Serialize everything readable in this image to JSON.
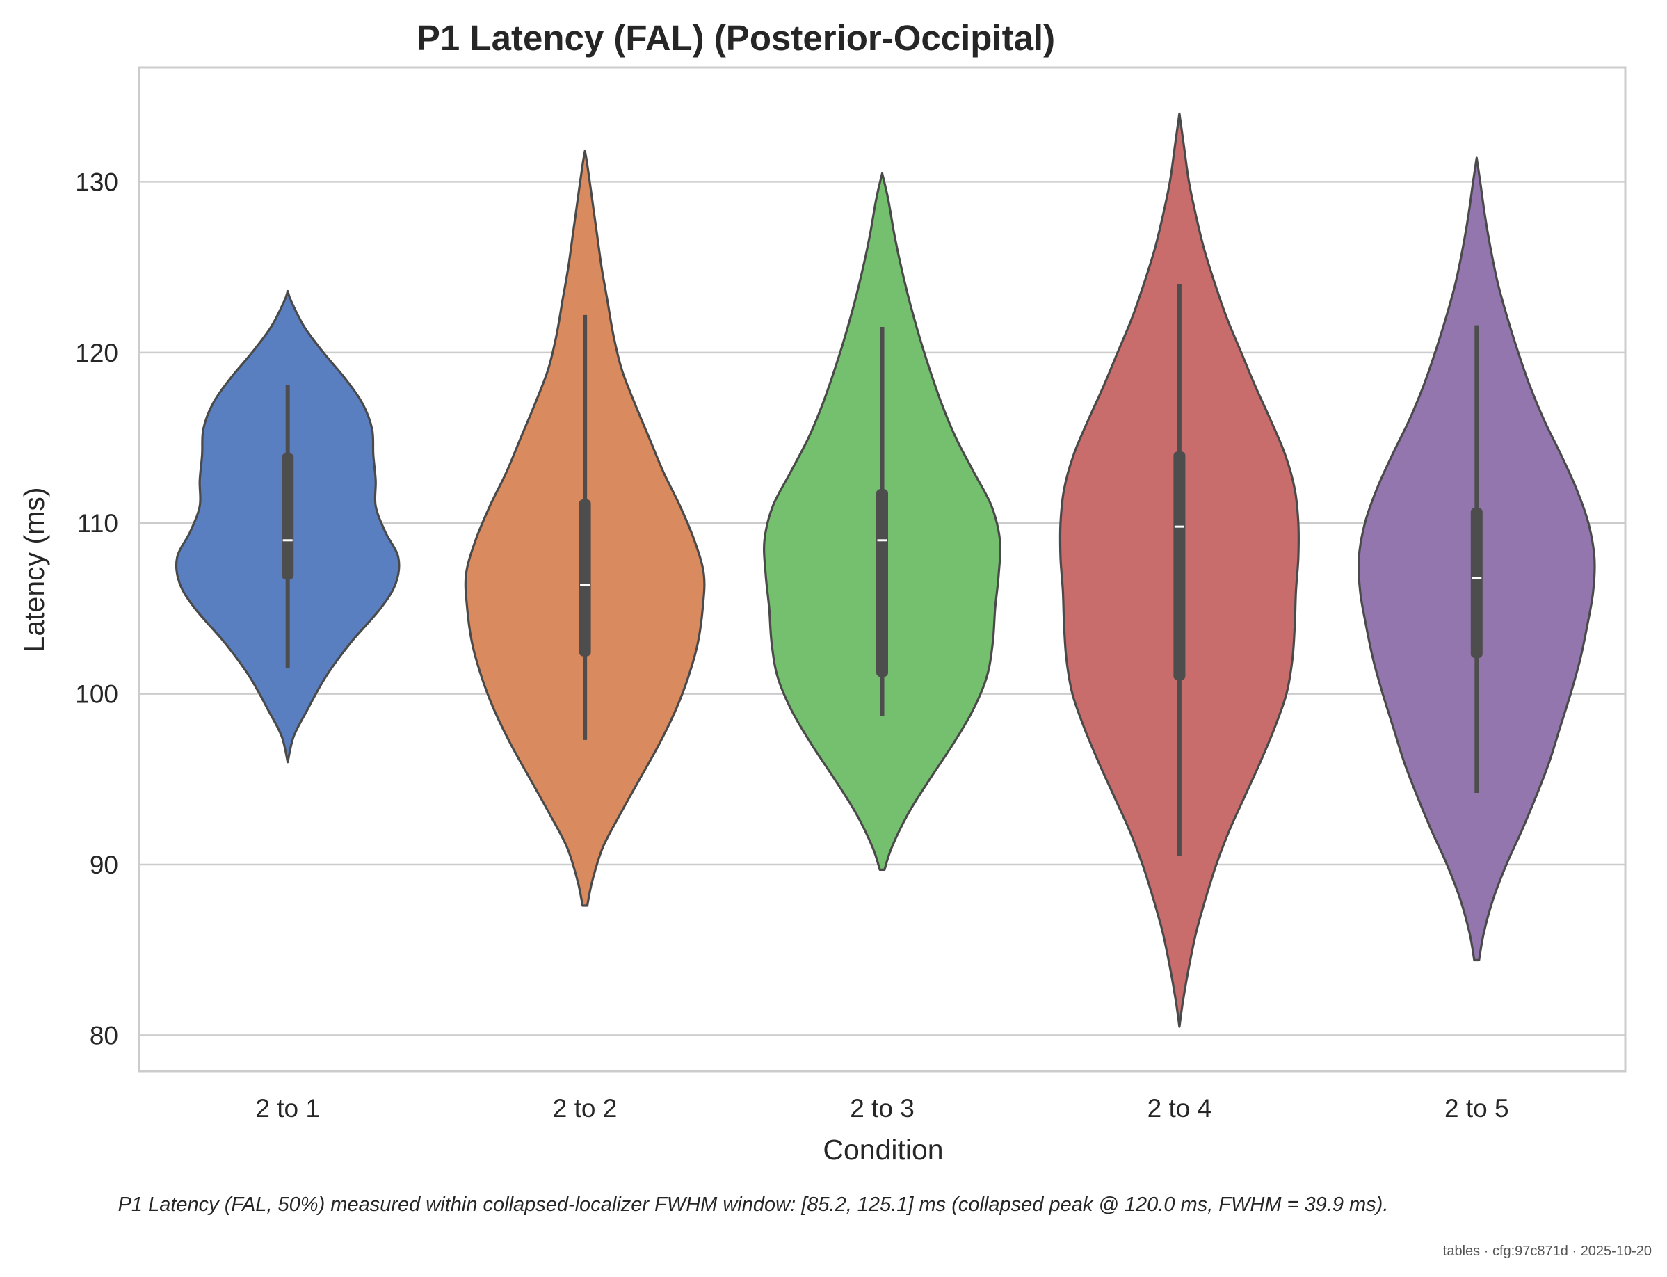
{
  "chart_data": {
    "type": "violin",
    "title": "P1 Latency (FAL) (Posterior-Occipital)",
    "xlabel": "Condition",
    "ylabel": "Latency (ms)",
    "ylim": [
      77.9,
      136.7
    ],
    "yticks": [
      "80",
      "90",
      "100",
      "110",
      "120",
      "130"
    ],
    "grid": "horizontal",
    "categories": [
      "2 to 1",
      "2 to 2",
      "2 to 3",
      "2 to 4",
      "2 to 5"
    ],
    "colors": [
      "#5a7fc1",
      "#d98a5e",
      "#75c06e",
      "#c86c6c",
      "#9376ad"
    ],
    "series": [
      {
        "category": "2 to 1",
        "min": 96.0,
        "max": 123.6,
        "whisker_low": 101.5,
        "whisker_high": 118.1,
        "q1": 106.7,
        "median": 109.0,
        "q3": 114.1,
        "density": [
          [
            96.0,
            0.0
          ],
          [
            97.5,
            0.05
          ],
          [
            99,
            0.16
          ],
          [
            101,
            0.32
          ],
          [
            103,
            0.53
          ],
          [
            105,
            0.78
          ],
          [
            106.5,
            0.91
          ],
          [
            108,
            0.93
          ],
          [
            109.5,
            0.82
          ],
          [
            111,
            0.74
          ],
          [
            112.5,
            0.74
          ],
          [
            114,
            0.72
          ],
          [
            115.5,
            0.71
          ],
          [
            117,
            0.63
          ],
          [
            118.5,
            0.48
          ],
          [
            120,
            0.3
          ],
          [
            121.5,
            0.14
          ],
          [
            123,
            0.03
          ],
          [
            123.6,
            0.0
          ]
        ]
      },
      {
        "category": "2 to 2",
        "min": 87.6,
        "max": 131.8,
        "whisker_low": 97.3,
        "whisker_high": 122.2,
        "q1": 102.2,
        "median": 106.4,
        "q3": 111.4,
        "density": [
          [
            87.6,
            0.02
          ],
          [
            89,
            0.06
          ],
          [
            91,
            0.15
          ],
          [
            93,
            0.3
          ],
          [
            95,
            0.46
          ],
          [
            97,
            0.62
          ],
          [
            99,
            0.76
          ],
          [
            101,
            0.87
          ],
          [
            103,
            0.95
          ],
          [
            105,
            0.99
          ],
          [
            107,
            1.0
          ],
          [
            109,
            0.92
          ],
          [
            111,
            0.8
          ],
          [
            113,
            0.66
          ],
          [
            115,
            0.54
          ],
          [
            117,
            0.42
          ],
          [
            119,
            0.31
          ],
          [
            121,
            0.24
          ],
          [
            123,
            0.19
          ],
          [
            125,
            0.14
          ],
          [
            127,
            0.1
          ],
          [
            129,
            0.06
          ],
          [
            131,
            0.02
          ],
          [
            131.8,
            0.0
          ]
        ]
      },
      {
        "category": "2 to 3",
        "min": 89.7,
        "max": 130.5,
        "whisker_low": 98.7,
        "whisker_high": 121.5,
        "q1": 101.0,
        "median": 109.0,
        "q3": 112.0,
        "density": [
          [
            89.7,
            0.02
          ],
          [
            91,
            0.08
          ],
          [
            93,
            0.22
          ],
          [
            95,
            0.4
          ],
          [
            97,
            0.59
          ],
          [
            99,
            0.76
          ],
          [
            101,
            0.88
          ],
          [
            103,
            0.93
          ],
          [
            105,
            0.95
          ],
          [
            107,
            0.98
          ],
          [
            109,
            0.99
          ],
          [
            111,
            0.92
          ],
          [
            113,
            0.77
          ],
          [
            115,
            0.62
          ],
          [
            117,
            0.5
          ],
          [
            119,
            0.4
          ],
          [
            121,
            0.31
          ],
          [
            123,
            0.23
          ],
          [
            125,
            0.16
          ],
          [
            127,
            0.1
          ],
          [
            129,
            0.05
          ],
          [
            130.5,
            0.0
          ]
        ]
      },
      {
        "category": "2 to 4",
        "min": 80.5,
        "max": 134.0,
        "whisker_low": 90.5,
        "whisker_high": 124.0,
        "q1": 100.8,
        "median": 109.8,
        "q3": 114.2,
        "density": [
          [
            80.5,
            0.0
          ],
          [
            82,
            0.03
          ],
          [
            84,
            0.08
          ],
          [
            86,
            0.14
          ],
          [
            88,
            0.22
          ],
          [
            90,
            0.31
          ],
          [
            92,
            0.42
          ],
          [
            94,
            0.55
          ],
          [
            96,
            0.68
          ],
          [
            98,
            0.8
          ],
          [
            100,
            0.9
          ],
          [
            102,
            0.95
          ],
          [
            104,
            0.97
          ],
          [
            106,
            0.98
          ],
          [
            108,
            1.0
          ],
          [
            110,
            1.0
          ],
          [
            112,
            0.97
          ],
          [
            114,
            0.89
          ],
          [
            116,
            0.77
          ],
          [
            118,
            0.64
          ],
          [
            120,
            0.52
          ],
          [
            122,
            0.4
          ],
          [
            124,
            0.3
          ],
          [
            126,
            0.21
          ],
          [
            128,
            0.14
          ],
          [
            130,
            0.08
          ],
          [
            132,
            0.04
          ],
          [
            134,
            0.0
          ]
        ]
      },
      {
        "category": "2 to 5",
        "min": 84.4,
        "max": 131.4,
        "whisker_low": 94.2,
        "whisker_high": 121.6,
        "q1": 102.1,
        "median": 106.8,
        "q3": 110.9,
        "density": [
          [
            84.4,
            0.02
          ],
          [
            86,
            0.06
          ],
          [
            88,
            0.14
          ],
          [
            90,
            0.25
          ],
          [
            92,
            0.38
          ],
          [
            94,
            0.5
          ],
          [
            96,
            0.61
          ],
          [
            98,
            0.7
          ],
          [
            100,
            0.79
          ],
          [
            102,
            0.87
          ],
          [
            104,
            0.93
          ],
          [
            106,
            0.98
          ],
          [
            108,
            0.99
          ],
          [
            110,
            0.94
          ],
          [
            112,
            0.84
          ],
          [
            114,
            0.71
          ],
          [
            116,
            0.57
          ],
          [
            118,
            0.45
          ],
          [
            120,
            0.35
          ],
          [
            122,
            0.26
          ],
          [
            124,
            0.18
          ],
          [
            126,
            0.12
          ],
          [
            128,
            0.07
          ],
          [
            130,
            0.03
          ],
          [
            131.4,
            0.0
          ]
        ]
      }
    ]
  },
  "caption": "P1 Latency (FAL, 50%) measured within collapsed-localizer FWHM window: [85.2, 125.1] ms (collapsed peak @ 120.0 ms, FWHM = 39.9 ms).",
  "footer": "tables · cfg:97c871d · 2025-10-20"
}
